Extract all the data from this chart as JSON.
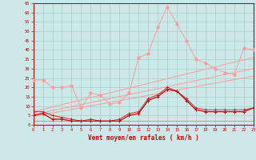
{
  "x": [
    0,
    1,
    2,
    3,
    4,
    5,
    6,
    7,
    8,
    9,
    10,
    11,
    12,
    13,
    14,
    15,
    16,
    17,
    18,
    19,
    20,
    21,
    22,
    23
  ],
  "light_series": [
    24,
    24,
    20,
    20,
    21,
    9,
    17,
    16,
    11,
    12,
    17,
    36,
    38,
    52,
    63,
    54,
    45,
    35,
    33,
    30,
    28,
    27,
    41,
    40
  ],
  "dark_mean": [
    5,
    6,
    3,
    3,
    2,
    2,
    2,
    2,
    2,
    2,
    5,
    6,
    13,
    15,
    19,
    18,
    13,
    8,
    7,
    7,
    7,
    7,
    7,
    9
  ],
  "dark_gust": [
    7,
    7,
    5,
    4,
    3,
    2,
    3,
    2,
    2,
    3,
    6,
    7,
    14,
    16,
    20,
    18,
    14,
    9,
    8,
    8,
    8,
    8,
    8,
    9
  ],
  "reg_lines": [
    [
      4.5,
      26
    ],
    [
      5.5,
      30
    ],
    [
      7,
      36
    ]
  ],
  "flat_val": 2,
  "bg_color": "#cce8e8",
  "grid_color": "#aacccc",
  "dark_red": "#cc0000",
  "light_red": "#ff9999",
  "xlabel": "Vent moyen/en rafales ( km/h )",
  "ylim": [
    0,
    65
  ],
  "yticks": [
    0,
    5,
    10,
    15,
    20,
    25,
    30,
    35,
    40,
    45,
    50,
    55,
    60,
    65
  ],
  "xlim": [
    0,
    23
  ]
}
